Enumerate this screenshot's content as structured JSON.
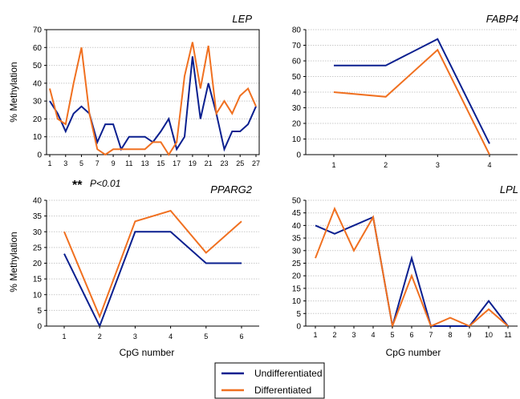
{
  "chart_data": [
    {
      "type": "line",
      "title": "LEP",
      "ylabel": "% Methylation",
      "xlabel": "",
      "ylim": [
        0,
        70
      ],
      "yticks": [
        0,
        10,
        20,
        30,
        40,
        50,
        60,
        70
      ],
      "x": [
        1,
        2,
        3,
        4,
        5,
        6,
        7,
        8,
        9,
        10,
        11,
        12,
        13,
        14,
        15,
        16,
        17,
        18,
        19,
        20,
        21,
        22,
        23,
        24,
        25,
        26,
        27
      ],
      "xticks": [
        1,
        3,
        5,
        7,
        9,
        11,
        13,
        15,
        17,
        19,
        21,
        23,
        25,
        27
      ],
      "grid": true,
      "series": [
        {
          "name": "Undifferentiated",
          "color": "#0a1f8f",
          "values": [
            30,
            23,
            13,
            23,
            27,
            23,
            7,
            17,
            17,
            3,
            10,
            10,
            10,
            7,
            13,
            20,
            3,
            10,
            55,
            20,
            40,
            23,
            3,
            13,
            13,
            17,
            27
          ]
        },
        {
          "name": "Differentiated",
          "color": "#f07020",
          "values": [
            37,
            20,
            17,
            40,
            60,
            23,
            3,
            0,
            3,
            3,
            3,
            3,
            3,
            7,
            7,
            0,
            7,
            44,
            63,
            37,
            61,
            23,
            30,
            23,
            33,
            37,
            27
          ]
        }
      ]
    },
    {
      "type": "line",
      "title": "FABP4",
      "ylabel": "",
      "xlabel": "",
      "ylim": [
        0,
        80
      ],
      "yticks": [
        0,
        10,
        20,
        30,
        40,
        50,
        60,
        70,
        80
      ],
      "x": [
        1,
        2,
        3,
        4
      ],
      "xticks": [
        1,
        2,
        3,
        4
      ],
      "grid": true,
      "series": [
        {
          "name": "Undifferentiated",
          "color": "#0a1f8f",
          "values": [
            57,
            57,
            74,
            7
          ]
        },
        {
          "name": "Differentiated",
          "color": "#f07020",
          "values": [
            40,
            37,
            67,
            0
          ]
        }
      ]
    },
    {
      "type": "line",
      "title": "PPARG2",
      "ylabel": "% Methylation",
      "xlabel": "CpG number",
      "ylim": [
        0,
        40
      ],
      "yticks": [
        0,
        5,
        10,
        15,
        20,
        25,
        30,
        35,
        40
      ],
      "x": [
        1,
        2,
        3,
        4,
        5,
        6
      ],
      "xticks": [
        1,
        2,
        3,
        4,
        5,
        6
      ],
      "grid": true,
      "series": [
        {
          "name": "Undifferentiated",
          "color": "#0a1f8f",
          "values": [
            23,
            0,
            30,
            30,
            20,
            20
          ]
        },
        {
          "name": "Differentiated",
          "color": "#f07020",
          "values": [
            30,
            3,
            33.3,
            36.7,
            23.3,
            33.3
          ]
        }
      ]
    },
    {
      "type": "line",
      "title": "LPL",
      "ylabel": "",
      "xlabel": "CpG number",
      "ylim": [
        0,
        50
      ],
      "yticks": [
        0,
        5,
        10,
        15,
        20,
        25,
        30,
        35,
        40,
        45,
        50
      ],
      "x": [
        1,
        2,
        3,
        4,
        5,
        6,
        7,
        8,
        9,
        10,
        11
      ],
      "xticks": [
        1,
        2,
        3,
        4,
        5,
        6,
        7,
        8,
        9,
        10,
        11
      ],
      "grid": true,
      "series": [
        {
          "name": "Undifferentiated",
          "color": "#0a1f8f",
          "values": [
            40,
            36.7,
            40,
            43.3,
            0,
            27,
            0,
            0,
            0,
            10,
            0
          ]
        },
        {
          "name": "Differentiated",
          "color": "#f07020",
          "values": [
            27,
            46.7,
            30,
            43.3,
            0,
            20,
            0,
            3.3,
            0,
            6.7,
            0
          ]
        }
      ]
    }
  ],
  "annotation": {
    "stars": "**",
    "text": "P<0.01"
  },
  "legend": {
    "placement": "bottom-center",
    "items": [
      {
        "label": "Undifferentiated",
        "color": "#0a1f8f"
      },
      {
        "label": "Differentiated",
        "color": "#f07020"
      }
    ]
  },
  "colors": {
    "axis": "#000000",
    "grid": "#c8c8c8"
  }
}
